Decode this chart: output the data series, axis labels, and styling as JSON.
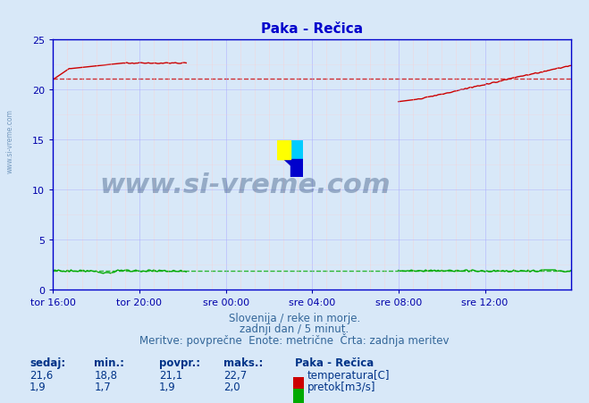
{
  "title": "Paka - Rečica",
  "bg_color": "#d8e8f8",
  "plot_bg_color": "#d8e8f8",
  "grid_color_major": "#c0c0ff",
  "grid_color_minor": "#e0c8c8",
  "title_color": "#0000cc",
  "axis_color": "#0000cc",
  "tick_color": "#0000aa",
  "ylabel_left": "",
  "xlabel": "",
  "xlim": [
    0,
    288
  ],
  "ylim": [
    0,
    25
  ],
  "yticks": [
    0,
    5,
    10,
    15,
    20,
    25
  ],
  "xtick_labels": [
    "tor 16:00",
    "tor 20:00",
    "sre 00:00",
    "sre 04:00",
    "sre 08:00",
    "sre 12:00"
  ],
  "xtick_positions": [
    0,
    48,
    96,
    144,
    192,
    240
  ],
  "avg_temp": 21.1,
  "avg_flow": 1.9,
  "min_temp": 18.8,
  "max_temp": 22.7,
  "min_flow": 1.7,
  "max_flow": 2.0,
  "cur_temp": 21.6,
  "cur_flow": 1.9,
  "subtitle1": "Slovenija / reke in morje.",
  "subtitle2": "zadnji dan / 5 minut.",
  "subtitle3": "Meritve: povprečne  Enote: metrične  Črta: zadnja meritev",
  "legend_title": "Paka - Rečica",
  "temp_color": "#cc0000",
  "flow_color": "#00aa00",
  "watermark_text": "www.si-vreme.com",
  "watermark_color": "#1a3a6a",
  "watermark_alpha": 0.35,
  "logo_colors": [
    "#ffff00",
    "#00ccff",
    "#0000cc"
  ]
}
